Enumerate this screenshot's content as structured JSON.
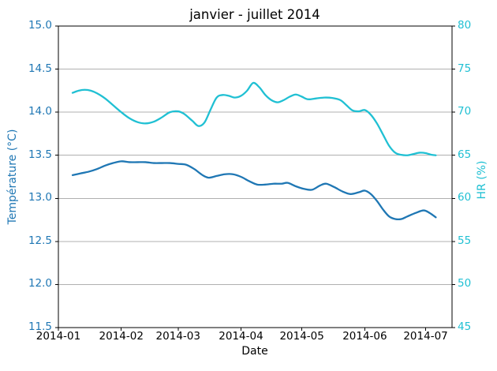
{
  "title": "janvier - juillet 2014",
  "axes": {
    "x": {
      "label": "Date",
      "tick_labels": [
        "2014-01",
        "2014-02",
        "2014-03",
        "2014-04",
        "2014-05",
        "2014-06",
        "2014-07"
      ],
      "tick_dates": [
        "2014-01-01",
        "2014-02-01",
        "2014-03-01",
        "2014-04-01",
        "2014-05-01",
        "2014-06-01",
        "2014-07-01"
      ]
    },
    "y_left": {
      "label": "Température (°C)",
      "tick_labels": [
        "15.0",
        "14.5",
        "14.0",
        "13.5",
        "13.0",
        "12.5",
        "12.0",
        "11.5"
      ],
      "color": "#1f77b4"
    },
    "y_right": {
      "label": "HR (%)",
      "tick_labels": [
        "80",
        "75",
        "70",
        "65",
        "60",
        "55",
        "50",
        "45"
      ],
      "color": "#20c0d3"
    }
  },
  "colors": {
    "temperature": "#1f77b4",
    "humidity": "#20c0d3",
    "grid": "#b0b0b0",
    "axis": "#000000",
    "background": "#ffffff"
  },
  "chart_data": {
    "type": "line",
    "title": "janvier - juillet 2014",
    "xlabel": "Date",
    "x_tick_labels": [
      "2014-01",
      "2014-02",
      "2014-03",
      "2014-04",
      "2014-05",
      "2014-06",
      "2014-07"
    ],
    "xlim": [
      "2014-01-01",
      "2014-07-14"
    ],
    "ylim_left": [
      11.5,
      15.0
    ],
    "ylim_right": [
      45,
      80
    ],
    "y_ticks_left": [
      15.0,
      14.5,
      14.0,
      13.5,
      13.0,
      12.5,
      12.0,
      11.5
    ],
    "y_ticks_right": [
      80,
      75,
      70,
      65,
      60,
      55,
      50,
      45
    ],
    "grid": true,
    "legend": false,
    "series": [
      {
        "name": "Température (°C)",
        "yaxis": "left",
        "color": "#1f77b4",
        "dates": [
          "2014-01-08",
          "2014-01-12",
          "2014-01-16",
          "2014-01-20",
          "2014-01-24",
          "2014-01-28",
          "2014-02-01",
          "2014-02-05",
          "2014-02-09",
          "2014-02-13",
          "2014-02-17",
          "2014-02-21",
          "2014-02-25",
          "2014-03-01",
          "2014-03-05",
          "2014-03-09",
          "2014-03-13",
          "2014-03-16",
          "2014-03-20",
          "2014-03-24",
          "2014-03-28",
          "2014-04-01",
          "2014-04-05",
          "2014-04-09",
          "2014-04-13",
          "2014-04-17",
          "2014-04-21",
          "2014-04-24",
          "2014-04-28",
          "2014-05-02",
          "2014-05-06",
          "2014-05-10",
          "2014-05-13",
          "2014-05-17",
          "2014-05-21",
          "2014-05-25",
          "2014-05-29",
          "2014-06-01",
          "2014-06-04",
          "2014-06-07",
          "2014-06-10",
          "2014-06-13",
          "2014-06-16",
          "2014-06-19",
          "2014-06-22",
          "2014-06-26",
          "2014-06-30",
          "2014-07-03",
          "2014-07-06"
        ],
        "values": [
          13.27,
          13.29,
          13.31,
          13.34,
          13.38,
          13.41,
          13.43,
          13.42,
          13.42,
          13.42,
          13.41,
          13.41,
          13.41,
          13.4,
          13.39,
          13.34,
          13.27,
          13.24,
          13.26,
          13.28,
          13.28,
          13.25,
          13.2,
          13.16,
          13.16,
          13.17,
          13.17,
          13.18,
          13.14,
          13.11,
          13.1,
          13.15,
          13.17,
          13.13,
          13.08,
          13.05,
          13.07,
          13.09,
          13.05,
          12.97,
          12.87,
          12.79,
          12.76,
          12.76,
          12.79,
          12.83,
          12.86,
          12.83,
          12.78
        ]
      },
      {
        "name": "HR (%)",
        "yaxis": "right",
        "color": "#20c0d3",
        "dates": [
          "2014-01-08",
          "2014-01-11",
          "2014-01-14",
          "2014-01-17",
          "2014-01-20",
          "2014-01-24",
          "2014-01-28",
          "2014-02-01",
          "2014-02-05",
          "2014-02-09",
          "2014-02-13",
          "2014-02-17",
          "2014-02-21",
          "2014-02-25",
          "2014-03-01",
          "2014-03-04",
          "2014-03-08",
          "2014-03-11",
          "2014-03-14",
          "2014-03-17",
          "2014-03-20",
          "2014-03-23",
          "2014-03-26",
          "2014-03-29",
          "2014-04-01",
          "2014-04-04",
          "2014-04-07",
          "2014-04-10",
          "2014-04-13",
          "2014-04-16",
          "2014-04-19",
          "2014-04-22",
          "2014-04-25",
          "2014-04-28",
          "2014-05-01",
          "2014-05-04",
          "2014-05-08",
          "2014-05-12",
          "2014-05-16",
          "2014-05-20",
          "2014-05-23",
          "2014-05-26",
          "2014-05-29",
          "2014-06-01",
          "2014-06-04",
          "2014-06-07",
          "2014-06-10",
          "2014-06-13",
          "2014-06-16",
          "2014-06-19",
          "2014-06-22",
          "2014-06-25",
          "2014-06-28",
          "2014-07-01",
          "2014-07-04",
          "2014-07-06"
        ],
        "values": [
          72.25,
          72.5,
          72.6,
          72.5,
          72.2,
          71.6,
          70.8,
          70.0,
          69.3,
          68.85,
          68.7,
          68.9,
          69.4,
          70.0,
          70.1,
          69.8,
          69.0,
          68.4,
          68.8,
          70.3,
          71.7,
          72.0,
          71.9,
          71.7,
          71.9,
          72.5,
          73.4,
          72.9,
          72.0,
          71.4,
          71.15,
          71.4,
          71.8,
          72.05,
          71.8,
          71.5,
          71.6,
          71.7,
          71.65,
          71.4,
          70.8,
          70.2,
          70.1,
          70.25,
          69.7,
          68.7,
          67.4,
          66.1,
          65.3,
          65.05,
          65.0,
          65.15,
          65.3,
          65.25,
          65.05,
          65.0
        ]
      }
    ]
  }
}
